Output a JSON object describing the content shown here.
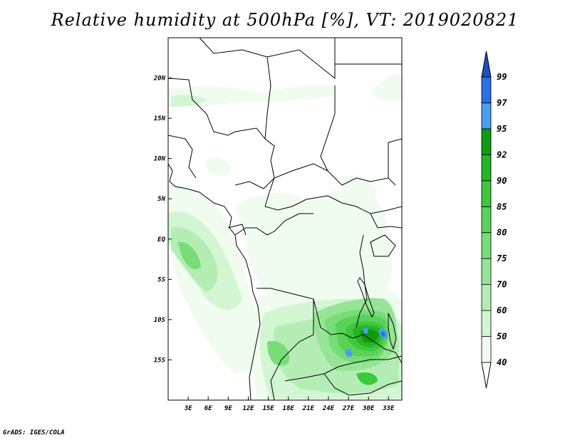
{
  "title": "Relative humidity at 500hPa [%], VT: 2019020821",
  "credit": "GrADS: IGES/COLA",
  "map": {
    "lon_range": [
      0,
      35
    ],
    "lat_range": [
      -20,
      25
    ],
    "lat_ticks": [
      {
        "value": 20,
        "label": "20N"
      },
      {
        "value": 15,
        "label": "15N"
      },
      {
        "value": 10,
        "label": "10N"
      },
      {
        "value": 5,
        "label": "5N"
      },
      {
        "value": 0,
        "label": "EQ"
      },
      {
        "value": -5,
        "label": "5S"
      },
      {
        "value": -10,
        "label": "10S"
      },
      {
        "value": -15,
        "label": "15S"
      }
    ],
    "lon_ticks": [
      {
        "value": 3,
        "label": "3E"
      },
      {
        "value": 6,
        "label": "6E"
      },
      {
        "value": 9,
        "label": "9E"
      },
      {
        "value": 12,
        "label": "12E"
      },
      {
        "value": 15,
        "label": "15E"
      },
      {
        "value": 18,
        "label": "18E"
      },
      {
        "value": 21,
        "label": "21E"
      },
      {
        "value": 24,
        "label": "24E"
      },
      {
        "value": 27,
        "label": "27E"
      },
      {
        "value": 30,
        "label": "30E"
      },
      {
        "value": 33,
        "label": "33E"
      }
    ]
  },
  "colorbar": {
    "levels": [
      "40",
      "50",
      "60",
      "70",
      "75",
      "80",
      "85",
      "90",
      "92",
      "95",
      "97",
      "99"
    ],
    "colors": [
      "#f0fcf0",
      "#d2f5d2",
      "#b4edb4",
      "#96e596",
      "#78dc78",
      "#5ad25a",
      "#3cc83c",
      "#24b424",
      "#119a11",
      "#4a9ef0",
      "#2a70e0",
      "#1e4ec8"
    ]
  },
  "fill_colors": {
    "c40": "#f0fcf0",
    "c50": "#d2f5d2",
    "c60": "#b4edb4",
    "c70": "#96e596",
    "c75": "#78dc78",
    "c80": "#5ad25a",
    "c85": "#3cc83c",
    "c90": "#24b424",
    "c92": "#119a11",
    "c95": "#4a9ef0",
    "c97": "#2a70e0",
    "c99": "#1e4ec8"
  }
}
